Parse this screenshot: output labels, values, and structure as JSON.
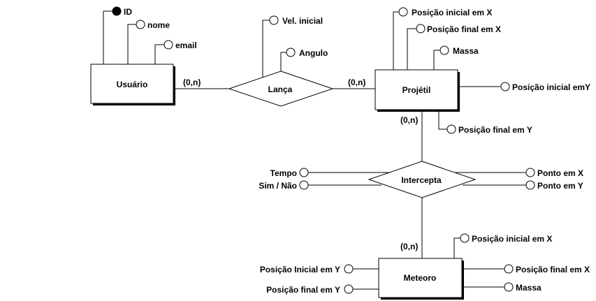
{
  "entities": {
    "usuario": "Usuário",
    "projetil": "Projétil",
    "meteoro": "Meteoro"
  },
  "relationships": {
    "lanca": "Lança",
    "intercepta": "Intercepta"
  },
  "cardinalities": {
    "usuario_lanca": "(0,n)",
    "lanca_projetil": "(0,n)",
    "projetil_intercepta": "(0,n)",
    "intercepta_meteoro": "(0,n)"
  },
  "attributes": {
    "usuario": {
      "id": "ID",
      "nome": "nome",
      "email": "email"
    },
    "lanca": {
      "vel_inicial": "Vel. inicial",
      "angulo": "Angulo"
    },
    "projetil": {
      "pos_inicial_x": "Posição inicial em X",
      "pos_final_x": "Posição final em X",
      "massa": "Massa",
      "pos_inicial_y": "Posição inicial emY",
      "pos_final_y": "Posição final em Y"
    },
    "intercepta": {
      "tempo": "Tempo",
      "sim_nao": "Sim / Não",
      "ponto_x": "Ponto em X",
      "ponto_y": "Ponto em Y"
    },
    "meteoro": {
      "pos_inicial_x": "Posição inicial em X",
      "pos_inicial_y": "Posição Inicial em Y",
      "pos_final_x": "Posição final em X",
      "pos_final_y": "Posição final em Y",
      "massa": "Massa"
    }
  }
}
